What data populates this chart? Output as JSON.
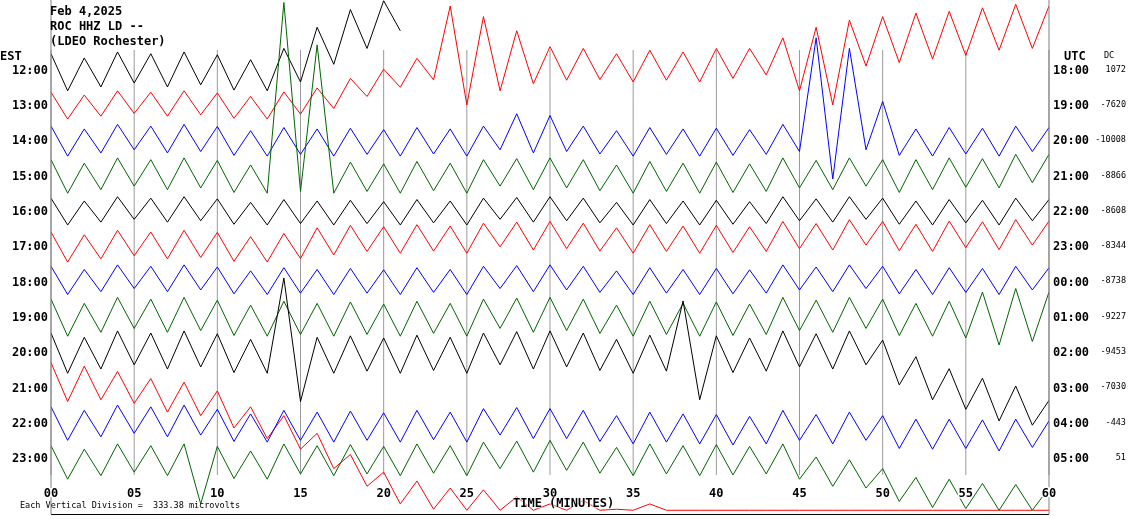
{
  "chart_data": {
    "type": "line",
    "title": "Feb 4,2025",
    "subtitle": "ROC HHZ LD --\n(LDEO Rochester)",
    "xlabel": "TIME (MINUTES)",
    "ylabel": "EST",
    "y2label": "UTC",
    "annotations": [
      "Each Vertical Division =  333.38 microvolts",
      "DC",
      "1072",
      "-7620",
      "-10008",
      "-8866",
      "-8608",
      "-8344",
      "-8738",
      "-9227",
      "-9453",
      "-7030",
      "-443",
      "51"
    ],
    "x": [
      0,
      1,
      2,
      3,
      4,
      5,
      6,
      7,
      8,
      9,
      10,
      11,
      12,
      13,
      14,
      15,
      16,
      17,
      18,
      19,
      20,
      21,
      22,
      23,
      24,
      25,
      26,
      27,
      28,
      29,
      30,
      31,
      32,
      33,
      34,
      35,
      36,
      37,
      38,
      39,
      40,
      41,
      42,
      43,
      44,
      45,
      46,
      47,
      48,
      49,
      50,
      51,
      52,
      53,
      54,
      55,
      56,
      57,
      58,
      59,
      60
    ],
    "xlim": [
      0,
      60
    ],
    "xticks": [
      {
        "value": 0,
        "label": "00"
      },
      {
        "value": 5,
        "label": "05"
      },
      10,
      15,
      20,
      25,
      30,
      35,
      40,
      45,
      50,
      55,
      60
    ],
    "ylim": [
      24.6,
      10.0
    ],
    "yticks": [
      {
        "value": 12,
        "label": "12:00"
      },
      {
        "value": 13,
        "label": "13:00"
      },
      {
        "value": 14,
        "label": "14:00"
      },
      {
        "value": 15,
        "label": "15:00"
      },
      {
        "value": 16,
        "label": "16:00"
      },
      {
        "value": 17,
        "label": "17:00"
      },
      {
        "value": 18,
        "label": "18:00"
      },
      {
        "value": 19,
        "label": "19:00"
      },
      {
        "value": 20,
        "label": "20:00"
      },
      {
        "value": 21,
        "label": "21:00"
      },
      {
        "value": 22,
        "label": "22:00"
      },
      {
        "value": 23,
        "label": "23:00"
      }
    ],
    "y2lim": [
      "2025-02-05T06:36",
      "2025-02-04T16:00"
    ],
    "y2ticks": [
      {
        "value": "2025-02-04T18:00",
        "label": "18:00"
      },
      {
        "value": "2025-02-04T19:00",
        "label": "19:00"
      },
      {
        "value": "2025-02-04T20:00",
        "label": "20:00"
      },
      {
        "value": "2025-02-04T21:00",
        "label": "21:00"
      },
      {
        "value": "2025-02-04T22:00",
        "label": "22:00"
      },
      {
        "value": "2025-02-04T23:00",
        "label": "23:00"
      },
      {
        "value": "2025-02-05T00:00",
        "label": "00:00"
      },
      {
        "value": "2025-02-05T01:00",
        "label": "01:00"
      },
      {
        "value": "2025-02-05T02:00",
        "label": "02:00"
      },
      {
        "value": "2025-02-05T03:00",
        "label": "03:00"
      },
      {
        "value": "2025-02-05T04:00",
        "label": "04:00"
      },
      {
        "value": "2025-02-05T05:00",
        "label": "05:00"
      }
    ],
    "grid": "x",
    "marker": "none",
    "series": [
      {
        "color": "#000000",
        "values": [
          11.55,
          12.6,
          11.67,
          12.49,
          11.5,
          12.38,
          11.55,
          12.49,
          11.5,
          12.43,
          11.58,
          12.58,
          11.72,
          12.6,
          11.4,
          12.35,
          10.8,
          11.85,
          10.3,
          11.4,
          10.05,
          10.9,
          null,
          null,
          null,
          null,
          null,
          null,
          null,
          null,
          null,
          null,
          null,
          null,
          null,
          null,
          null,
          null,
          null,
          null,
          null,
          null,
          null,
          null,
          null,
          null,
          null,
          null,
          null,
          null,
          null,
          null,
          null,
          null,
          null,
          null,
          null,
          null,
          null,
          null,
          null
        ]
      },
      {
        "color": "#ff0000",
        "values": [
          12.64,
          13.4,
          12.72,
          13.32,
          12.6,
          13.24,
          12.64,
          13.32,
          12.6,
          13.28,
          12.66,
          13.38,
          12.76,
          13.4,
          12.63,
          13.26,
          12.52,
          13.1,
          12.25,
          12.76,
          11.99,
          12.5,
          11.68,
          12.29,
          10.2,
          13.0,
          10.5,
          12.6,
          10.9,
          12.4,
          11.35,
          12.3,
          11.4,
          12.28,
          11.55,
          12.35,
          11.45,
          12.3,
          11.5,
          12.35,
          11.4,
          12.25,
          11.4,
          12.15,
          11.1,
          12.6,
          10.8,
          13.0,
          10.6,
          11.9,
          10.5,
          11.8,
          10.4,
          11.7,
          10.35,
          11.6,
          10.25,
          11.45,
          10.15,
          11.4,
          10.2
        ]
      },
      {
        "color": "#0000ff",
        "values": [
          13.6,
          14.45,
          13.68,
          14.36,
          13.55,
          14.27,
          13.6,
          14.36,
          13.55,
          14.32,
          13.61,
          14.43,
          13.73,
          14.45,
          13.64,
          14.4,
          13.68,
          14.45,
          13.66,
          14.4,
          13.7,
          14.45,
          13.64,
          14.39,
          13.68,
          14.45,
          13.6,
          14.27,
          13.25,
          14.36,
          13.3,
          14.32,
          13.6,
          14.39,
          13.73,
          14.45,
          13.64,
          14.4,
          13.68,
          14.45,
          13.66,
          14.43,
          13.7,
          14.4,
          13.55,
          14.32,
          11.1,
          15.1,
          11.4,
          14.27,
          12.9,
          14.43,
          13.68,
          14.45,
          13.64,
          14.39,
          13.66,
          14.45,
          13.6,
          14.32,
          13.64
        ]
      },
      {
        "color": "#006400",
        "values": [
          14.55,
          15.5,
          14.65,
          15.4,
          14.5,
          15.3,
          14.55,
          15.4,
          14.5,
          15.35,
          14.57,
          15.48,
          14.7,
          15.5,
          10.1,
          15.45,
          11.3,
          15.5,
          14.62,
          15.45,
          14.67,
          15.5,
          14.6,
          15.43,
          14.65,
          15.5,
          14.55,
          15.3,
          14.52,
          15.4,
          14.5,
          15.35,
          14.55,
          15.43,
          14.7,
          15.5,
          14.6,
          15.45,
          14.65,
          15.5,
          14.62,
          15.48,
          14.67,
          15.45,
          14.5,
          15.35,
          14.57,
          15.4,
          14.5,
          15.3,
          14.55,
          15.48,
          14.55,
          15.4,
          14.5,
          15.33,
          14.52,
          15.35,
          14.4,
          15.2,
          14.4
        ]
      },
      {
        "color": "#000000",
        "values": [
          15.64,
          16.4,
          15.72,
          16.32,
          15.6,
          16.24,
          15.64,
          16.32,
          15.6,
          16.28,
          15.66,
          16.38,
          15.76,
          16.4,
          15.68,
          16.36,
          15.72,
          16.4,
          15.7,
          16.36,
          15.74,
          16.4,
          15.68,
          16.34,
          15.72,
          16.4,
          15.64,
          16.24,
          15.62,
          16.32,
          15.6,
          16.28,
          15.64,
          16.34,
          15.76,
          16.4,
          15.68,
          16.36,
          15.72,
          16.4,
          15.7,
          16.38,
          15.74,
          16.36,
          15.6,
          16.28,
          15.66,
          16.32,
          15.6,
          16.24,
          15.64,
          16.38,
          15.72,
          16.4,
          15.68,
          16.34,
          15.7,
          16.4,
          15.64,
          16.28,
          15.68
        ]
      },
      {
        "color": "#ff0000",
        "values": [
          16.6,
          17.45,
          16.68,
          17.36,
          16.55,
          17.27,
          16.6,
          17.36,
          16.55,
          17.32,
          16.61,
          17.43,
          16.73,
          17.45,
          16.64,
          17.35,
          16.48,
          17.25,
          16.41,
          17.15,
          16.45,
          17.2,
          16.39,
          17.14,
          16.43,
          17.2,
          16.35,
          17.02,
          16.32,
          17.11,
          16.3,
          17.07,
          16.35,
          17.14,
          16.48,
          17.2,
          16.39,
          17.15,
          16.43,
          17.2,
          16.41,
          17.18,
          16.45,
          17.15,
          16.3,
          17.07,
          16.36,
          17.11,
          16.25,
          16.97,
          16.3,
          17.13,
          16.38,
          17.15,
          16.29,
          17.04,
          16.31,
          17.1,
          16.25,
          16.97,
          16.29
        ]
      },
      {
        "color": "#0000ff",
        "values": [
          17.57,
          18.37,
          17.66,
          18.29,
          17.53,
          18.2,
          17.57,
          18.29,
          17.53,
          18.24,
          17.59,
          18.35,
          17.7,
          18.37,
          17.61,
          18.33,
          17.66,
          18.37,
          17.63,
          18.33,
          17.67,
          18.37,
          17.61,
          18.31,
          17.66,
          18.37,
          17.57,
          18.2,
          17.55,
          18.29,
          17.53,
          18.24,
          17.57,
          18.31,
          17.7,
          18.37,
          17.61,
          18.33,
          17.66,
          18.37,
          17.63,
          18.35,
          17.67,
          18.33,
          17.53,
          18.24,
          17.59,
          18.29,
          17.53,
          18.2,
          17.57,
          18.35,
          17.66,
          18.37,
          17.61,
          18.31,
          17.63,
          18.37,
          17.57,
          18.24,
          17.61
        ]
      },
      {
        "color": "#006400",
        "values": [
          18.5,
          19.55,
          18.62,
          19.44,
          18.45,
          19.33,
          18.5,
          19.44,
          18.45,
          19.39,
          18.53,
          19.53,
          18.67,
          19.55,
          18.56,
          19.5,
          18.62,
          19.55,
          18.58,
          19.5,
          18.64,
          19.55,
          18.56,
          19.47,
          18.62,
          19.55,
          18.5,
          19.33,
          18.47,
          19.44,
          18.45,
          19.39,
          18.5,
          19.47,
          18.67,
          19.55,
          18.56,
          19.5,
          18.62,
          19.55,
          18.58,
          19.53,
          18.64,
          19.5,
          18.45,
          19.39,
          18.53,
          19.44,
          18.45,
          19.33,
          18.5,
          19.53,
          18.62,
          19.55,
          18.56,
          19.6,
          18.3,
          19.8,
          18.2,
          19.7,
          18.3
        ]
      },
      {
        "color": "#000000",
        "values": [
          19.46,
          20.6,
          19.58,
          20.48,
          19.4,
          20.36,
          19.46,
          20.48,
          19.4,
          20.42,
          19.48,
          20.58,
          19.64,
          20.6,
          17.9,
          21.4,
          19.58,
          20.6,
          19.54,
          20.54,
          19.6,
          20.6,
          19.52,
          20.52,
          19.58,
          20.6,
          19.46,
          20.36,
          19.42,
          20.48,
          19.4,
          20.42,
          19.46,
          20.52,
          19.64,
          20.6,
          19.52,
          20.54,
          18.55,
          21.35,
          19.54,
          20.58,
          19.6,
          20.54,
          19.4,
          20.42,
          19.48,
          20.48,
          19.4,
          20.36,
          19.66,
          20.93,
          20.13,
          21.35,
          20.47,
          21.62,
          20.74,
          21.95,
          20.96,
          22.07,
          21.37
        ]
      },
      {
        "color": "#ff0000",
        "values": [
          20.3,
          21.4,
          20.4,
          21.35,
          20.55,
          21.45,
          20.75,
          21.7,
          20.85,
          21.8,
          21.1,
          22.15,
          21.55,
          22.45,
          21.8,
          22.75,
          22.3,
          23.3,
          22.9,
          23.8,
          23.4,
          24.3,
          23.65,
          24.45,
          23.85,
          24.48,
          23.9,
          24.48,
          24.1,
          24.48,
          24.3,
          24.48,
          24.2,
          24.48,
          24.45,
          24.48,
          24.3,
          24.48,
          24.48,
          24.48,
          24.48,
          24.48,
          24.48,
          24.48,
          24.48,
          24.48,
          24.48,
          24.48,
          24.48,
          24.48,
          24.48,
          24.48,
          24.48,
          24.48,
          24.48,
          24.48,
          24.48,
          24.48,
          24.48,
          24.48,
          24.48
        ]
      },
      {
        "color": "#0000ff",
        "values": [
          21.55,
          22.5,
          21.65,
          22.4,
          21.5,
          22.3,
          21.55,
          22.4,
          21.5,
          22.35,
          21.62,
          22.53,
          21.75,
          22.55,
          21.65,
          22.5,
          21.7,
          22.55,
          21.67,
          22.5,
          21.72,
          22.55,
          21.65,
          22.48,
          21.7,
          22.55,
          21.6,
          22.35,
          21.57,
          22.45,
          21.6,
          22.45,
          21.65,
          22.53,
          21.8,
          22.6,
          21.7,
          22.55,
          21.75,
          22.6,
          21.77,
          22.63,
          21.82,
          22.6,
          21.65,
          22.5,
          21.77,
          22.6,
          21.7,
          22.5,
          21.8,
          22.73,
          21.9,
          22.75,
          21.9,
          22.73,
          21.92,
          22.8,
          21.9,
          22.7,
          21.95
        ]
      },
      {
        "color": "#006400",
        "values": [
          22.65,
          23.6,
          22.75,
          23.5,
          22.6,
          23.4,
          22.65,
          23.5,
          22.6,
          24.3,
          22.67,
          23.58,
          22.8,
          23.6,
          22.6,
          23.45,
          22.65,
          23.5,
          22.62,
          23.45,
          22.67,
          23.5,
          22.6,
          23.43,
          22.65,
          23.5,
          22.55,
          23.3,
          22.52,
          23.4,
          22.5,
          23.35,
          22.55,
          23.43,
          22.7,
          23.5,
          22.6,
          23.45,
          22.65,
          23.5,
          22.62,
          23.48,
          22.67,
          23.45,
          22.6,
          23.6,
          22.97,
          23.8,
          23.05,
          23.85,
          23.3,
          24.23,
          23.55,
          24.4,
          23.6,
          24.43,
          23.72,
          24.48,
          23.75,
          24.48,
          23.85
        ]
      }
    ]
  }
}
